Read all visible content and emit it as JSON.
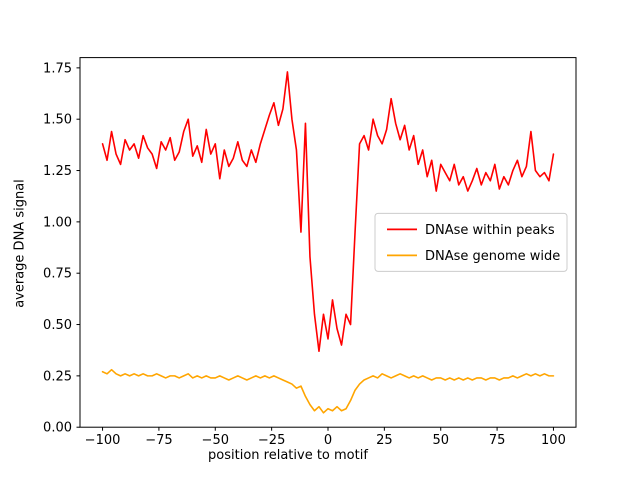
{
  "figure": {
    "background": "#ffffff",
    "xlabel": "position relative to motif",
    "ylabel": "average DNA signal"
  },
  "legend": {
    "position": "center right",
    "entries": [
      {
        "label": "DNAse within peaks",
        "color": "#ff0000"
      },
      {
        "label": "DNAse genome wide",
        "color": "#ffa500"
      }
    ]
  },
  "chart_data": {
    "type": "line",
    "title": "",
    "xlabel": "position relative to motif",
    "ylabel": "average DNA signal",
    "xlim": [
      -110,
      110
    ],
    "ylim": [
      0,
      1.8
    ],
    "xticks": [
      -100,
      -75,
      -50,
      -25,
      0,
      25,
      50,
      75,
      100
    ],
    "yticks": [
      0.0,
      0.25,
      0.5,
      0.75,
      1.0,
      1.25,
      1.5,
      1.75
    ],
    "grid": false,
    "legend_position": "center right",
    "x": [
      -100,
      -98,
      -96,
      -94,
      -92,
      -90,
      -88,
      -86,
      -84,
      -82,
      -80,
      -78,
      -76,
      -74,
      -72,
      -70,
      -68,
      -66,
      -64,
      -62,
      -60,
      -58,
      -56,
      -54,
      -52,
      -50,
      -48,
      -46,
      -44,
      -42,
      -40,
      -38,
      -36,
      -34,
      -32,
      -30,
      -28,
      -26,
      -24,
      -22,
      -20,
      -18,
      -16,
      -14,
      -12,
      -10,
      -8,
      -6,
      -4,
      -2,
      0,
      2,
      4,
      6,
      8,
      10,
      12,
      14,
      16,
      18,
      20,
      22,
      24,
      26,
      28,
      30,
      32,
      34,
      36,
      38,
      40,
      42,
      44,
      46,
      48,
      50,
      52,
      54,
      56,
      58,
      60,
      62,
      64,
      66,
      68,
      70,
      72,
      74,
      76,
      78,
      80,
      82,
      84,
      86,
      88,
      90,
      92,
      94,
      96,
      98,
      100
    ],
    "series": [
      {
        "name": "DNAse within peaks",
        "color": "#ff0000",
        "values": [
          1.38,
          1.3,
          1.44,
          1.33,
          1.28,
          1.4,
          1.35,
          1.38,
          1.31,
          1.42,
          1.36,
          1.33,
          1.26,
          1.39,
          1.35,
          1.41,
          1.3,
          1.34,
          1.44,
          1.5,
          1.32,
          1.37,
          1.29,
          1.45,
          1.33,
          1.38,
          1.21,
          1.35,
          1.27,
          1.31,
          1.39,
          1.3,
          1.27,
          1.35,
          1.29,
          1.38,
          1.45,
          1.52,
          1.58,
          1.47,
          1.55,
          1.73,
          1.5,
          1.35,
          0.95,
          1.48,
          0.83,
          0.55,
          0.37,
          0.55,
          0.43,
          0.62,
          0.48,
          0.4,
          0.55,
          0.5,
          0.95,
          1.38,
          1.42,
          1.35,
          1.5,
          1.42,
          1.38,
          1.45,
          1.6,
          1.48,
          1.4,
          1.47,
          1.35,
          1.42,
          1.28,
          1.35,
          1.22,
          1.3,
          1.15,
          1.28,
          1.24,
          1.2,
          1.28,
          1.18,
          1.22,
          1.15,
          1.2,
          1.26,
          1.18,
          1.24,
          1.2,
          1.28,
          1.16,
          1.22,
          1.18,
          1.25,
          1.3,
          1.22,
          1.27,
          1.44,
          1.25,
          1.22,
          1.24,
          1.2,
          1.33
        ]
      },
      {
        "name": "DNAse genome wide",
        "color": "#ffa500",
        "values": [
          0.27,
          0.26,
          0.28,
          0.26,
          0.25,
          0.26,
          0.25,
          0.26,
          0.25,
          0.26,
          0.25,
          0.25,
          0.26,
          0.25,
          0.24,
          0.25,
          0.25,
          0.24,
          0.25,
          0.26,
          0.24,
          0.25,
          0.24,
          0.25,
          0.24,
          0.24,
          0.25,
          0.24,
          0.23,
          0.24,
          0.25,
          0.24,
          0.23,
          0.24,
          0.25,
          0.24,
          0.25,
          0.24,
          0.25,
          0.24,
          0.23,
          0.22,
          0.21,
          0.19,
          0.2,
          0.15,
          0.11,
          0.08,
          0.1,
          0.07,
          0.09,
          0.08,
          0.1,
          0.08,
          0.09,
          0.13,
          0.18,
          0.21,
          0.23,
          0.24,
          0.25,
          0.24,
          0.26,
          0.25,
          0.24,
          0.25,
          0.26,
          0.25,
          0.24,
          0.25,
          0.24,
          0.25,
          0.24,
          0.23,
          0.24,
          0.24,
          0.23,
          0.24,
          0.23,
          0.24,
          0.23,
          0.24,
          0.23,
          0.24,
          0.24,
          0.23,
          0.24,
          0.24,
          0.23,
          0.24,
          0.24,
          0.25,
          0.24,
          0.25,
          0.26,
          0.25,
          0.26,
          0.25,
          0.26,
          0.25,
          0.25
        ]
      }
    ]
  }
}
